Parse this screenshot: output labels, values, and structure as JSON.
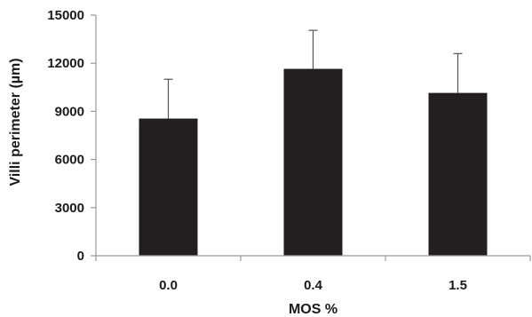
{
  "chart_data": {
    "type": "bar",
    "title": "",
    "xlabel": "MOS %",
    "ylabel": "Villi perimeter (µm)",
    "categories": [
      "0.0",
      "0.4",
      "1.5"
    ],
    "values": [
      8550,
      11650,
      10150
    ],
    "error_upper": [
      2450,
      2400,
      2450
    ],
    "ylim": [
      0,
      15000
    ],
    "yticks": [
      0,
      3000,
      6000,
      9000,
      12000,
      15000
    ],
    "ytick_labels": [
      "0",
      "3000",
      "6000",
      "9000",
      "12000",
      "15000"
    ],
    "grid": false,
    "legend": "none",
    "bar_color": "#231f20",
    "axis_color": "#9a9a9a"
  }
}
